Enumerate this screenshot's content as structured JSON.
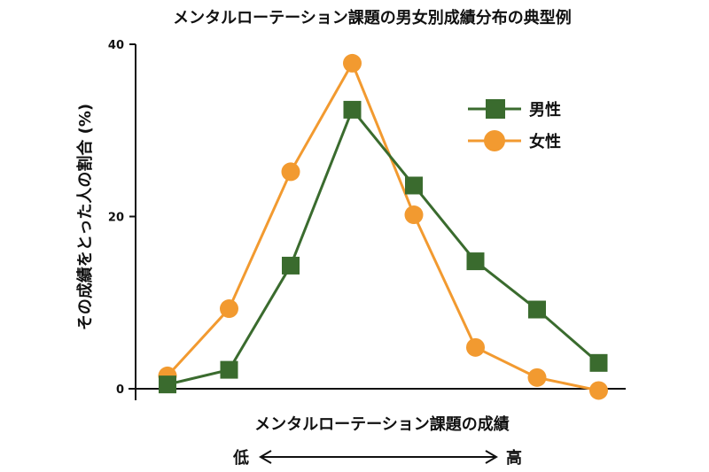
{
  "chart_data": {
    "type": "line",
    "title": "メンタルローテーション課題の男女別成績分布の典型例",
    "xlabel": "メンタルローテーション課題の成績",
    "ylabel": "その成績をとった人の割合 (%)",
    "ylim": [
      0,
      40
    ],
    "yticks": [
      "0",
      "20",
      "40"
    ],
    "x": [
      1,
      2,
      3,
      4,
      5,
      6,
      7,
      8
    ],
    "x_low_label": "低",
    "x_high_label": "高",
    "grid": false,
    "legend_position": "top-right",
    "series": [
      {
        "name": "男性",
        "marker": "square",
        "color": "#3a6b2e",
        "values": [
          0.5,
          2.2,
          14.3,
          32.4,
          23.6,
          14.8,
          9.2,
          3.0
        ]
      },
      {
        "name": "女性",
        "marker": "circle",
        "color": "#f29a30",
        "values": [
          1.5,
          9.3,
          25.2,
          37.8,
          20.2,
          4.8,
          1.3,
          -0.2
        ]
      }
    ]
  }
}
